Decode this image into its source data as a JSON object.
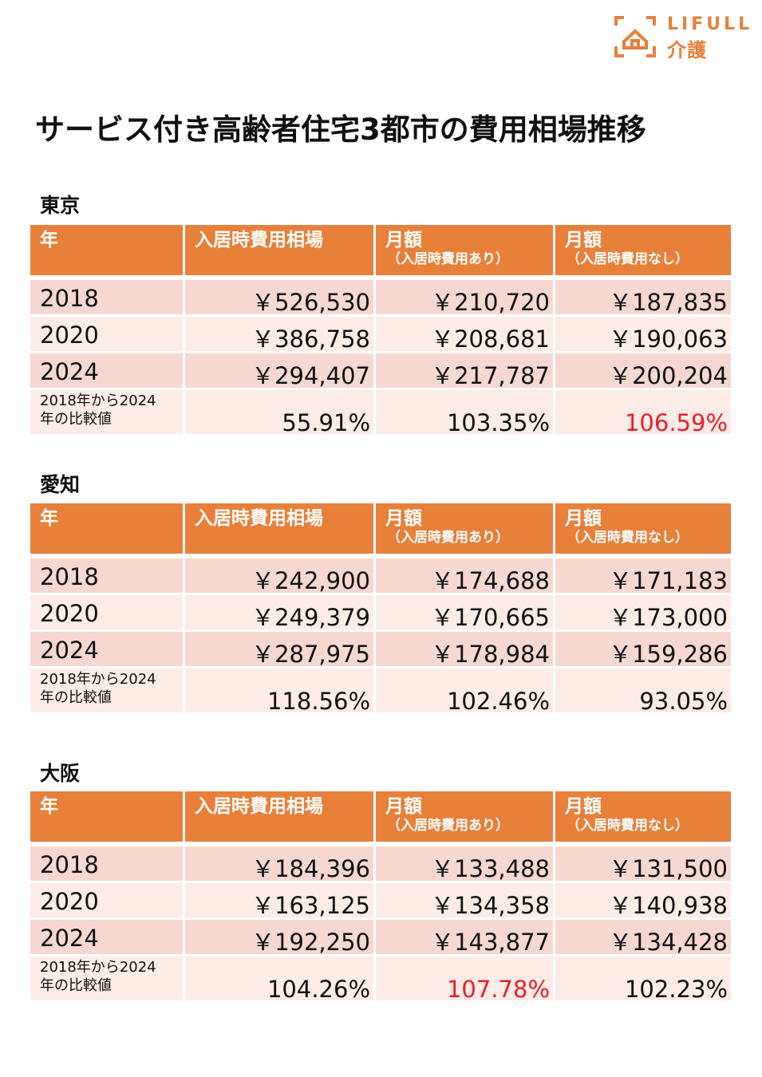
{
  "brand": {
    "name": "LIFULL",
    "sub": "介護",
    "accent": "#e8803a"
  },
  "title": "サービス付き高齢者住宅3都市の費用相場推移",
  "headers": {
    "year": "年",
    "initial": "入居時費用相場",
    "monthly_with": "月額",
    "monthly_with_sub": "（入居時費用あり）",
    "monthly_without": "月額",
    "monthly_without_sub": "（入居時費用なし）"
  },
  "compare_label_line1": "2018年から2024",
  "compare_label_line2": "年の比較値",
  "sections": [
    {
      "name": "東京",
      "rows": [
        {
          "year": "2018",
          "initial": "￥526,530",
          "with": "￥210,720",
          "without": "￥187,835"
        },
        {
          "year": "2020",
          "initial": "￥386,758",
          "with": "￥208,681",
          "without": "￥190,063"
        },
        {
          "year": "2024",
          "initial": "￥294,407",
          "with": "￥217,787",
          "without": "￥200,204"
        }
      ],
      "compare": {
        "initial": "55.91%",
        "with": "103.35%",
        "without": "106.59%"
      }
    },
    {
      "name": "愛知",
      "rows": [
        {
          "year": "2018",
          "initial": "￥242,900",
          "with": "￥174,688",
          "without": "￥171,183"
        },
        {
          "year": "2020",
          "initial": "￥249,379",
          "with": "￥170,665",
          "without": "￥173,000"
        },
        {
          "year": "2024",
          "initial": "￥287,975",
          "with": "￥178,984",
          "without": "￥159,286"
        }
      ],
      "compare": {
        "initial": "118.56%",
        "with": "102.46%",
        "without": "93.05%"
      }
    },
    {
      "name": "大阪",
      "rows": [
        {
          "year": "2018",
          "initial": "￥184,396",
          "with": "￥133,488",
          "without": "￥131,500"
        },
        {
          "year": "2020",
          "initial": "￥163,125",
          "with": "￥134,358",
          "without": "￥140,938"
        },
        {
          "year": "2024",
          "initial": "￥192,250",
          "with": "￥143,877",
          "without": "￥134,428"
        }
      ],
      "compare": {
        "initial": "104.26%",
        "with": "107.78%",
        "without": "102.23%"
      }
    }
  ]
}
